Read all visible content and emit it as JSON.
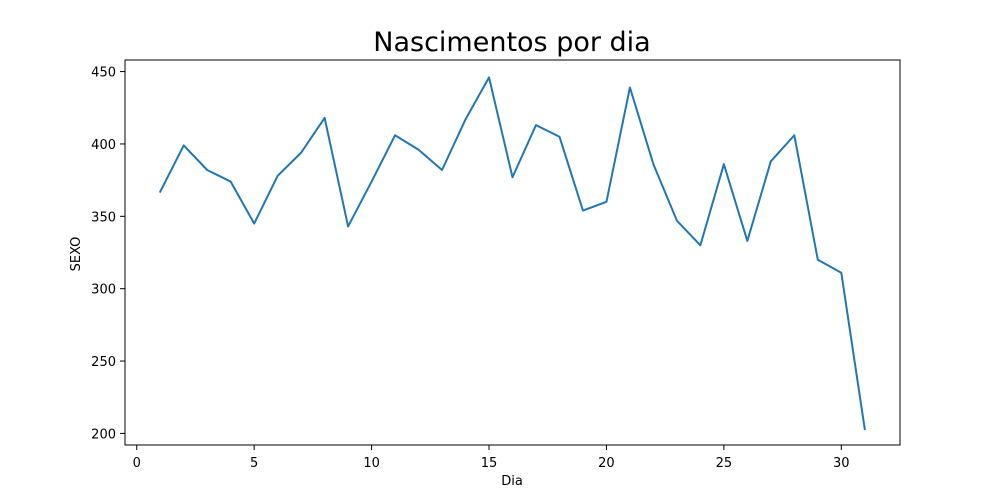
{
  "chart_data": {
    "type": "line",
    "title": "Nascimentos por dia",
    "xlabel": "Dia",
    "ylabel": "SEXO",
    "xlim": [
      -0.5,
      32.5
    ],
    "ylim": [
      192,
      458
    ],
    "xticks": [
      0,
      5,
      10,
      15,
      20,
      25,
      30
    ],
    "yticks": [
      200,
      250,
      300,
      350,
      400,
      450
    ],
    "grid": false,
    "series": [
      {
        "color": "#1f77b4",
        "x": [
          1,
          2,
          3,
          4,
          5,
          6,
          7,
          8,
          9,
          10,
          11,
          12,
          13,
          14,
          15,
          16,
          17,
          18,
          19,
          20,
          21,
          22,
          23,
          24,
          25,
          26,
          27,
          28,
          29,
          30,
          31
        ],
        "y": [
          367,
          399,
          382,
          374,
          345,
          378,
          394,
          418,
          343,
          374,
          406,
          396,
          382,
          417,
          446,
          377,
          413,
          405,
          354,
          360,
          439,
          386,
          347,
          330,
          386,
          333,
          388,
          406,
          320,
          311,
          203
        ]
      }
    ]
  }
}
